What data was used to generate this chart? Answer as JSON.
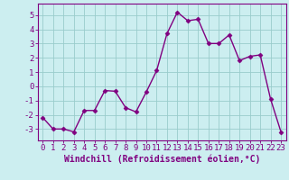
{
  "x": [
    0,
    1,
    2,
    3,
    4,
    5,
    6,
    7,
    8,
    9,
    10,
    11,
    12,
    13,
    14,
    15,
    16,
    17,
    18,
    19,
    20,
    21,
    22,
    23
  ],
  "y": [
    -2.2,
    -3.0,
    -3.0,
    -3.2,
    -1.7,
    -1.7,
    -0.3,
    -0.35,
    -1.5,
    -1.8,
    -0.4,
    1.1,
    3.7,
    5.2,
    4.6,
    4.7,
    3.0,
    3.0,
    3.6,
    1.8,
    2.1,
    2.2,
    -0.9,
    -3.2
  ],
  "line_color": "#800080",
  "marker": "D",
  "marker_size": 2.5,
  "bg_color": "#cceef0",
  "grid_color": "#99cccc",
  "xlabel": "Windchill (Refroidissement éolien,°C)",
  "xlabel_color": "#800080",
  "xlabel_fontsize": 7,
  "ylim": [
    -3.8,
    5.8
  ],
  "xlim": [
    -0.5,
    23.5
  ],
  "tick_color": "#800080",
  "ytick_vals": [
    -3,
    -2,
    -1,
    0,
    1,
    2,
    3,
    4,
    5
  ],
  "tick_fontsize": 6.5,
  "spine_color": "#800080",
  "line_width": 1.0
}
